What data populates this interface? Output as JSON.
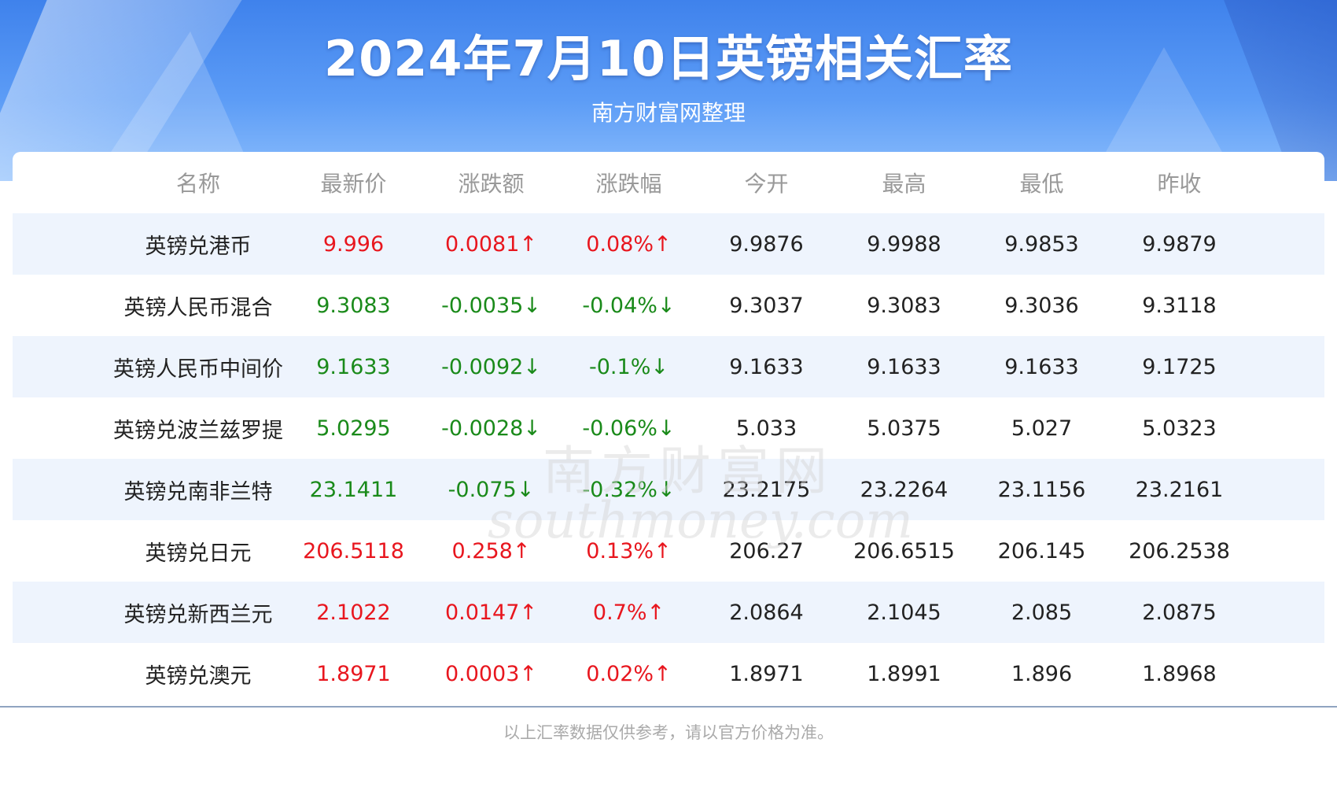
{
  "header": {
    "title": "2024年7月10日英镑相关汇率",
    "subtitle": "南方财富网整理"
  },
  "table": {
    "columns": [
      "名称",
      "最新价",
      "涨跌额",
      "涨跌幅",
      "今开",
      "最高",
      "最低",
      "昨收"
    ],
    "rows": [
      {
        "name": "英镑兑港币",
        "latest": "9.996",
        "change": "0.0081↑",
        "pct": "0.08%↑",
        "open": "9.9876",
        "high": "9.9988",
        "low": "9.9853",
        "prev": "9.9879",
        "trend": "up"
      },
      {
        "name": "英镑人民币混合",
        "latest": "9.3083",
        "change": "-0.0035↓",
        "pct": "-0.04%↓",
        "open": "9.3037",
        "high": "9.3083",
        "low": "9.3036",
        "prev": "9.3118",
        "trend": "down"
      },
      {
        "name": "英镑人民币中间价",
        "latest": "9.1633",
        "change": "-0.0092↓",
        "pct": "-0.1%↓",
        "open": "9.1633",
        "high": "9.1633",
        "low": "9.1633",
        "prev": "9.1725",
        "trend": "down"
      },
      {
        "name": "英镑兑波兰兹罗提",
        "latest": "5.0295",
        "change": "-0.0028↓",
        "pct": "-0.06%↓",
        "open": "5.033",
        "high": "5.0375",
        "low": "5.027",
        "prev": "5.0323",
        "trend": "down"
      },
      {
        "name": "英镑兑南非兰特",
        "latest": "23.1411",
        "change": "-0.075↓",
        "pct": "-0.32%↓",
        "open": "23.2175",
        "high": "23.2264",
        "low": "23.1156",
        "prev": "23.2161",
        "trend": "down"
      },
      {
        "name": "英镑兑日元",
        "latest": "206.5118",
        "change": "0.258↑",
        "pct": "0.13%↑",
        "open": "206.27",
        "high": "206.6515",
        "low": "206.145",
        "prev": "206.2538",
        "trend": "up"
      },
      {
        "name": "英镑兑新西兰元",
        "latest": "2.1022",
        "change": "0.0147↑",
        "pct": "0.7%↑",
        "open": "2.0864",
        "high": "2.1045",
        "low": "2.085",
        "prev": "2.0875",
        "trend": "up"
      },
      {
        "name": "英镑兑澳元",
        "latest": "1.8971",
        "change": "0.0003↑",
        "pct": "0.02%↑",
        "open": "1.8971",
        "high": "1.8991",
        "low": "1.896",
        "prev": "1.8968",
        "trend": "up"
      }
    ]
  },
  "watermark": {
    "cn": "南方财富网",
    "en": "southmoney.com"
  },
  "footnote": "以上汇率数据仅供参考，请以官方价格为准。",
  "colors": {
    "up": "#e8161e",
    "down": "#1a8a1a",
    "header_blue": "#3f82ec",
    "stripe": "#eef4fd"
  }
}
